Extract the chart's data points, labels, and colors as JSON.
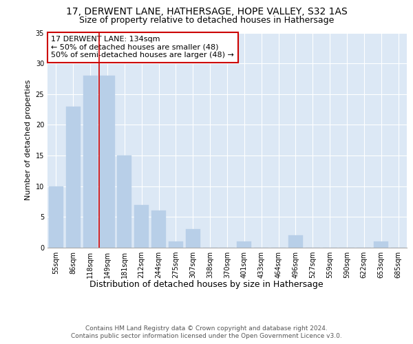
{
  "title": "17, DERWENT LANE, HATHERSAGE, HOPE VALLEY, S32 1AS",
  "subtitle": "Size of property relative to detached houses in Hathersage",
  "xlabel": "Distribution of detached houses by size in Hathersage",
  "ylabel": "Number of detached properties",
  "categories": [
    "55sqm",
    "86sqm",
    "118sqm",
    "149sqm",
    "181sqm",
    "212sqm",
    "244sqm",
    "275sqm",
    "307sqm",
    "338sqm",
    "370sqm",
    "401sqm",
    "433sqm",
    "464sqm",
    "496sqm",
    "527sqm",
    "559sqm",
    "590sqm",
    "622sqm",
    "653sqm",
    "685sqm"
  ],
  "values": [
    10,
    23,
    28,
    28,
    15,
    7,
    6,
    1,
    3,
    0,
    0,
    1,
    0,
    0,
    2,
    0,
    0,
    0,
    0,
    1,
    0
  ],
  "bar_color": "#b8cfe8",
  "bar_edgecolor": "#b8cfe8",
  "vline_x": 2.5,
  "vline_color": "#cc0000",
  "annotation_text": "17 DERWENT LANE: 134sqm\n← 50% of detached houses are smaller (48)\n50% of semi-detached houses are larger (48) →",
  "annotation_box_facecolor": "#ffffff",
  "annotation_box_edgecolor": "#cc0000",
  "ylim": [
    0,
    35
  ],
  "yticks": [
    0,
    5,
    10,
    15,
    20,
    25,
    30,
    35
  ],
  "bg_color": "#ffffff",
  "plot_bg_color": "#dce8f5",
  "footer1": "Contains HM Land Registry data © Crown copyright and database right 2024.",
  "footer2": "Contains public sector information licensed under the Open Government Licence v3.0.",
  "title_fontsize": 10,
  "subtitle_fontsize": 9,
  "xlabel_fontsize": 9,
  "ylabel_fontsize": 8,
  "tick_fontsize": 7,
  "annotation_fontsize": 8,
  "footer_fontsize": 6.5
}
